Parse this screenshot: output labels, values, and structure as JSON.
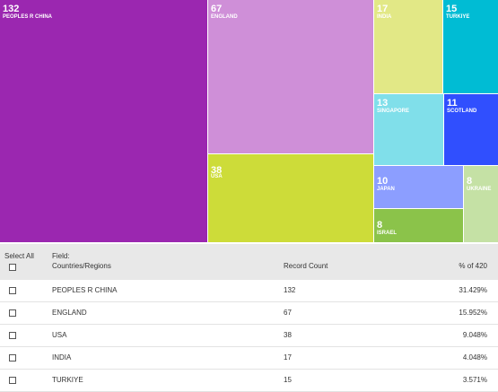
{
  "treemap": {
    "tiles": [
      {
        "count": "132",
        "name": "PEOPLES R CHINA",
        "color": "#9b27b0"
      },
      {
        "count": "67",
        "name": "ENGLAND",
        "color": "#cf8fd8"
      },
      {
        "count": "17",
        "name": "INDIA",
        "color": "#e2e886"
      },
      {
        "count": "15",
        "name": "TURKIYE",
        "color": "#00bcd4"
      },
      {
        "count": "13",
        "name": "SINGAPORE",
        "color": "#80dfea"
      },
      {
        "count": "11",
        "name": "SCOTLAND",
        "color": "#304ffe"
      },
      {
        "count": "38",
        "name": "USA",
        "color": "#cddc39"
      },
      {
        "count": "10",
        "name": "JAPAN",
        "color": "#8c9eff"
      },
      {
        "count": "8",
        "name": "UKRAINE",
        "color": "#c5e1a5"
      },
      {
        "count": "8",
        "name": "ISRAEL",
        "color": "#8bc34a"
      }
    ]
  },
  "table": {
    "select_all_label": "Select All",
    "field_label": "Field:",
    "field_value": "Countries/Regions",
    "record_count_header": "Record Count",
    "percent_header": "% of 420",
    "rows": [
      {
        "name": "PEOPLES R CHINA",
        "count": "132",
        "percent": "31.429%"
      },
      {
        "name": "ENGLAND",
        "count": "67",
        "percent": "15.952%"
      },
      {
        "name": "USA",
        "count": "38",
        "percent": "9.048%"
      },
      {
        "name": "INDIA",
        "count": "17",
        "percent": "4.048%"
      },
      {
        "name": "TURKIYE",
        "count": "15",
        "percent": "3.571%"
      }
    ]
  }
}
